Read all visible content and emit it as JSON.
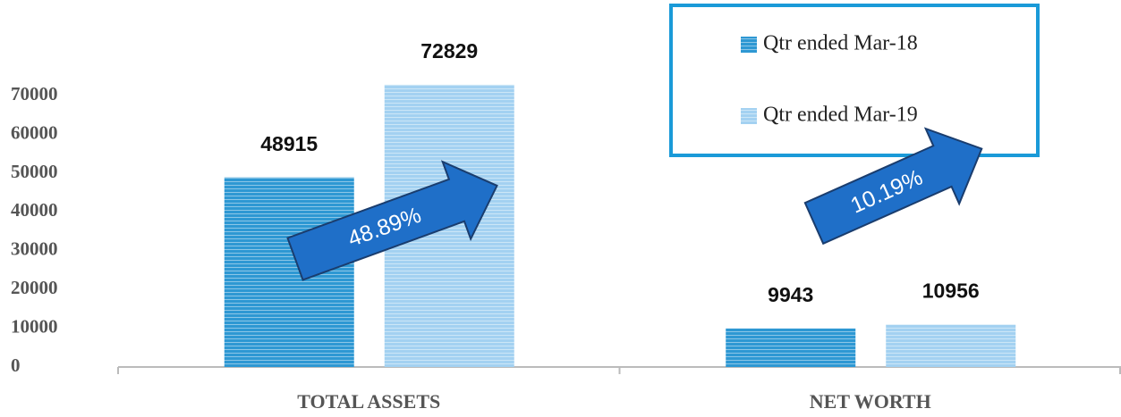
{
  "chart_data": {
    "type": "bar",
    "categories": [
      "TOTAL ASSETS",
      "NET WORTH"
    ],
    "series": [
      {
        "name": "Qtr ended Mar-18",
        "color": "#2e98d3",
        "values": [
          48915,
          9943
        ]
      },
      {
        "name": "Qtr ended Mar-19",
        "color": "#a3d1f1",
        "values": [
          72829,
          10956
        ]
      }
    ],
    "annotations": [
      "48.89%",
      "10.19%"
    ],
    "ylim": [
      0,
      80000
    ],
    "yticks": [
      0,
      10000,
      20000,
      30000,
      40000,
      50000,
      60000,
      70000
    ],
    "grid": false
  }
}
